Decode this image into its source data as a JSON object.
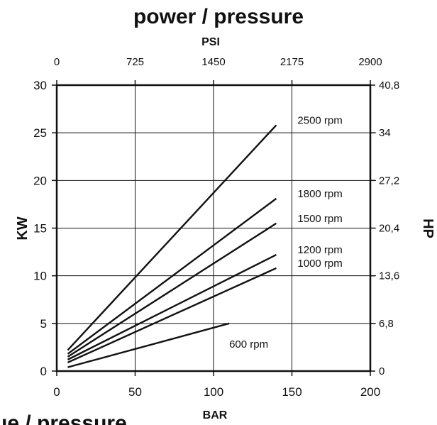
{
  "chart_data": {
    "type": "line",
    "title": "power / pressure",
    "bottom_caption": "ue / pressure",
    "xlabel": "BAR",
    "ylabel": "KW",
    "top_axis_label": "PSI",
    "right_axis_label": "HP",
    "xlim": [
      0,
      200
    ],
    "ylim": [
      0,
      30
    ],
    "x_ticks": [
      "0",
      "50",
      "100",
      "150",
      "200"
    ],
    "y_ticks": [
      "0",
      "5",
      "10",
      "15",
      "20",
      "25",
      "30"
    ],
    "top_ticks": [
      "0",
      "725",
      "1450",
      "2175",
      "2900"
    ],
    "right_ticks": [
      "0",
      "6,8",
      "13,6",
      "20,4",
      "27,2",
      "34",
      "40,8"
    ],
    "grid": true,
    "series": [
      {
        "name": "2500 rpm",
        "x": [
          7,
          140
        ],
        "y": [
          2.2,
          25.8
        ]
      },
      {
        "name": "1800 rpm",
        "x": [
          7,
          140
        ],
        "y": [
          1.8,
          18.1
        ]
      },
      {
        "name": "1500 rpm",
        "x": [
          7,
          140
        ],
        "y": [
          1.5,
          15.5
        ]
      },
      {
        "name": "1200 rpm",
        "x": [
          7,
          140
        ],
        "y": [
          1.2,
          12.2
        ]
      },
      {
        "name": "1000 rpm",
        "x": [
          7,
          140
        ],
        "y": [
          0.9,
          10.8
        ]
      },
      {
        "name": "600 rpm",
        "x": [
          7,
          110
        ],
        "y": [
          0.4,
          5.0
        ]
      }
    ]
  }
}
